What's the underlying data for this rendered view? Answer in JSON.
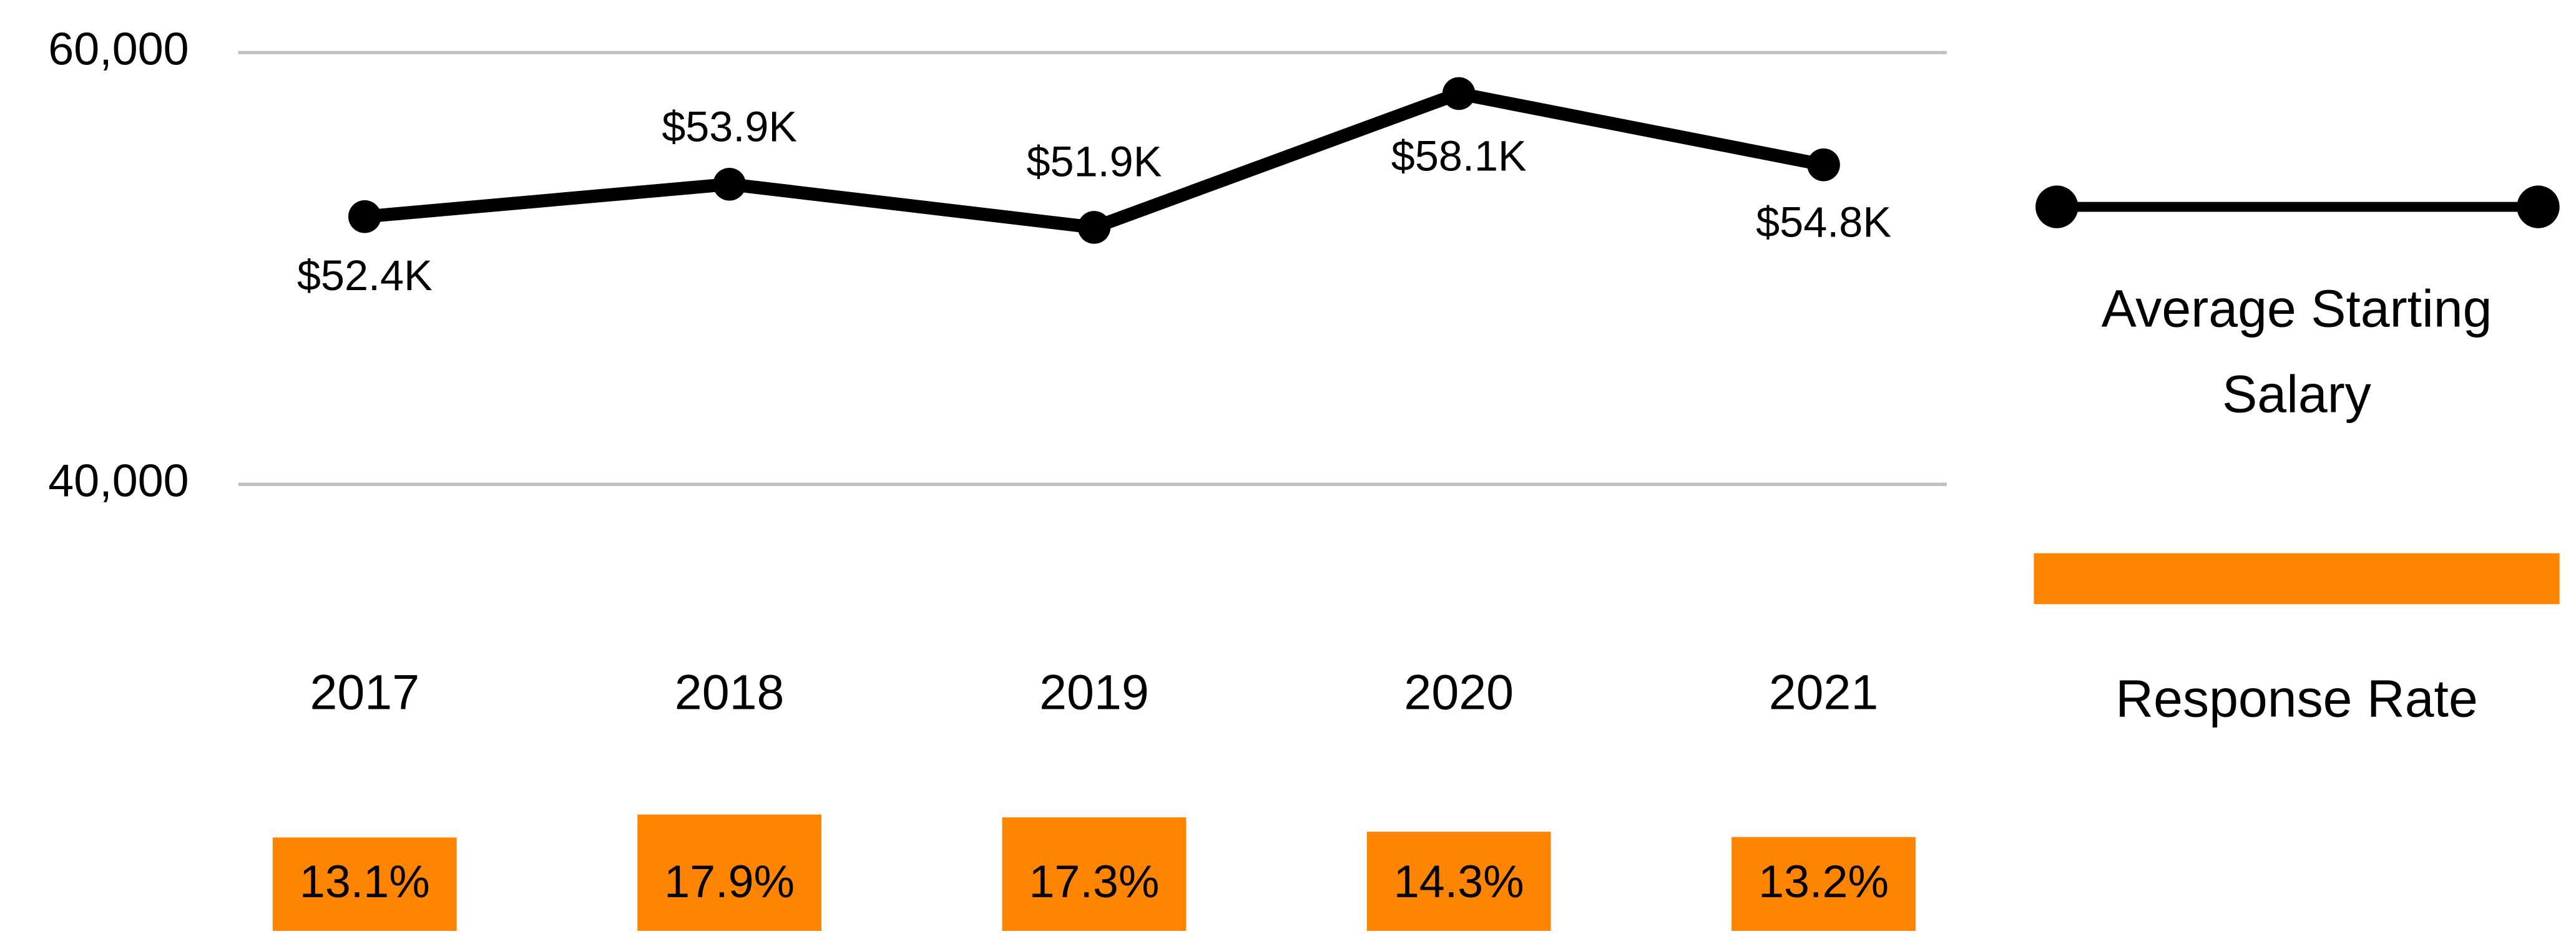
{
  "chart_data": {
    "type": "line",
    "categories": [
      "2017",
      "2018",
      "2019",
      "2020",
      "2021"
    ],
    "series": [
      {
        "name": "Average Starting Salary",
        "color": "#000000",
        "values": [
          52400,
          53900,
          51900,
          58100,
          54800
        ],
        "value_labels": [
          "$52.4K",
          "$53.9K",
          "$51.9K",
          "$58.1K",
          "$54.8K"
        ]
      },
      {
        "name": "Response Rate",
        "type": "bar",
        "axis": "y2",
        "color": "#ff8400",
        "values": [
          13.1,
          17.9,
          17.3,
          14.3,
          13.2
        ],
        "value_labels": [
          "13.1%",
          "17.9%",
          "17.3%",
          "14.3%",
          "13.2%"
        ]
      }
    ],
    "ylim": [
      40000,
      60000
    ],
    "yticks": [
      {
        "value": 40000,
        "label": "40,000"
      },
      {
        "value": 60000,
        "label": "60,000"
      }
    ],
    "y2lim": [
      -6.4,
      20
    ],
    "grid": true
  }
}
